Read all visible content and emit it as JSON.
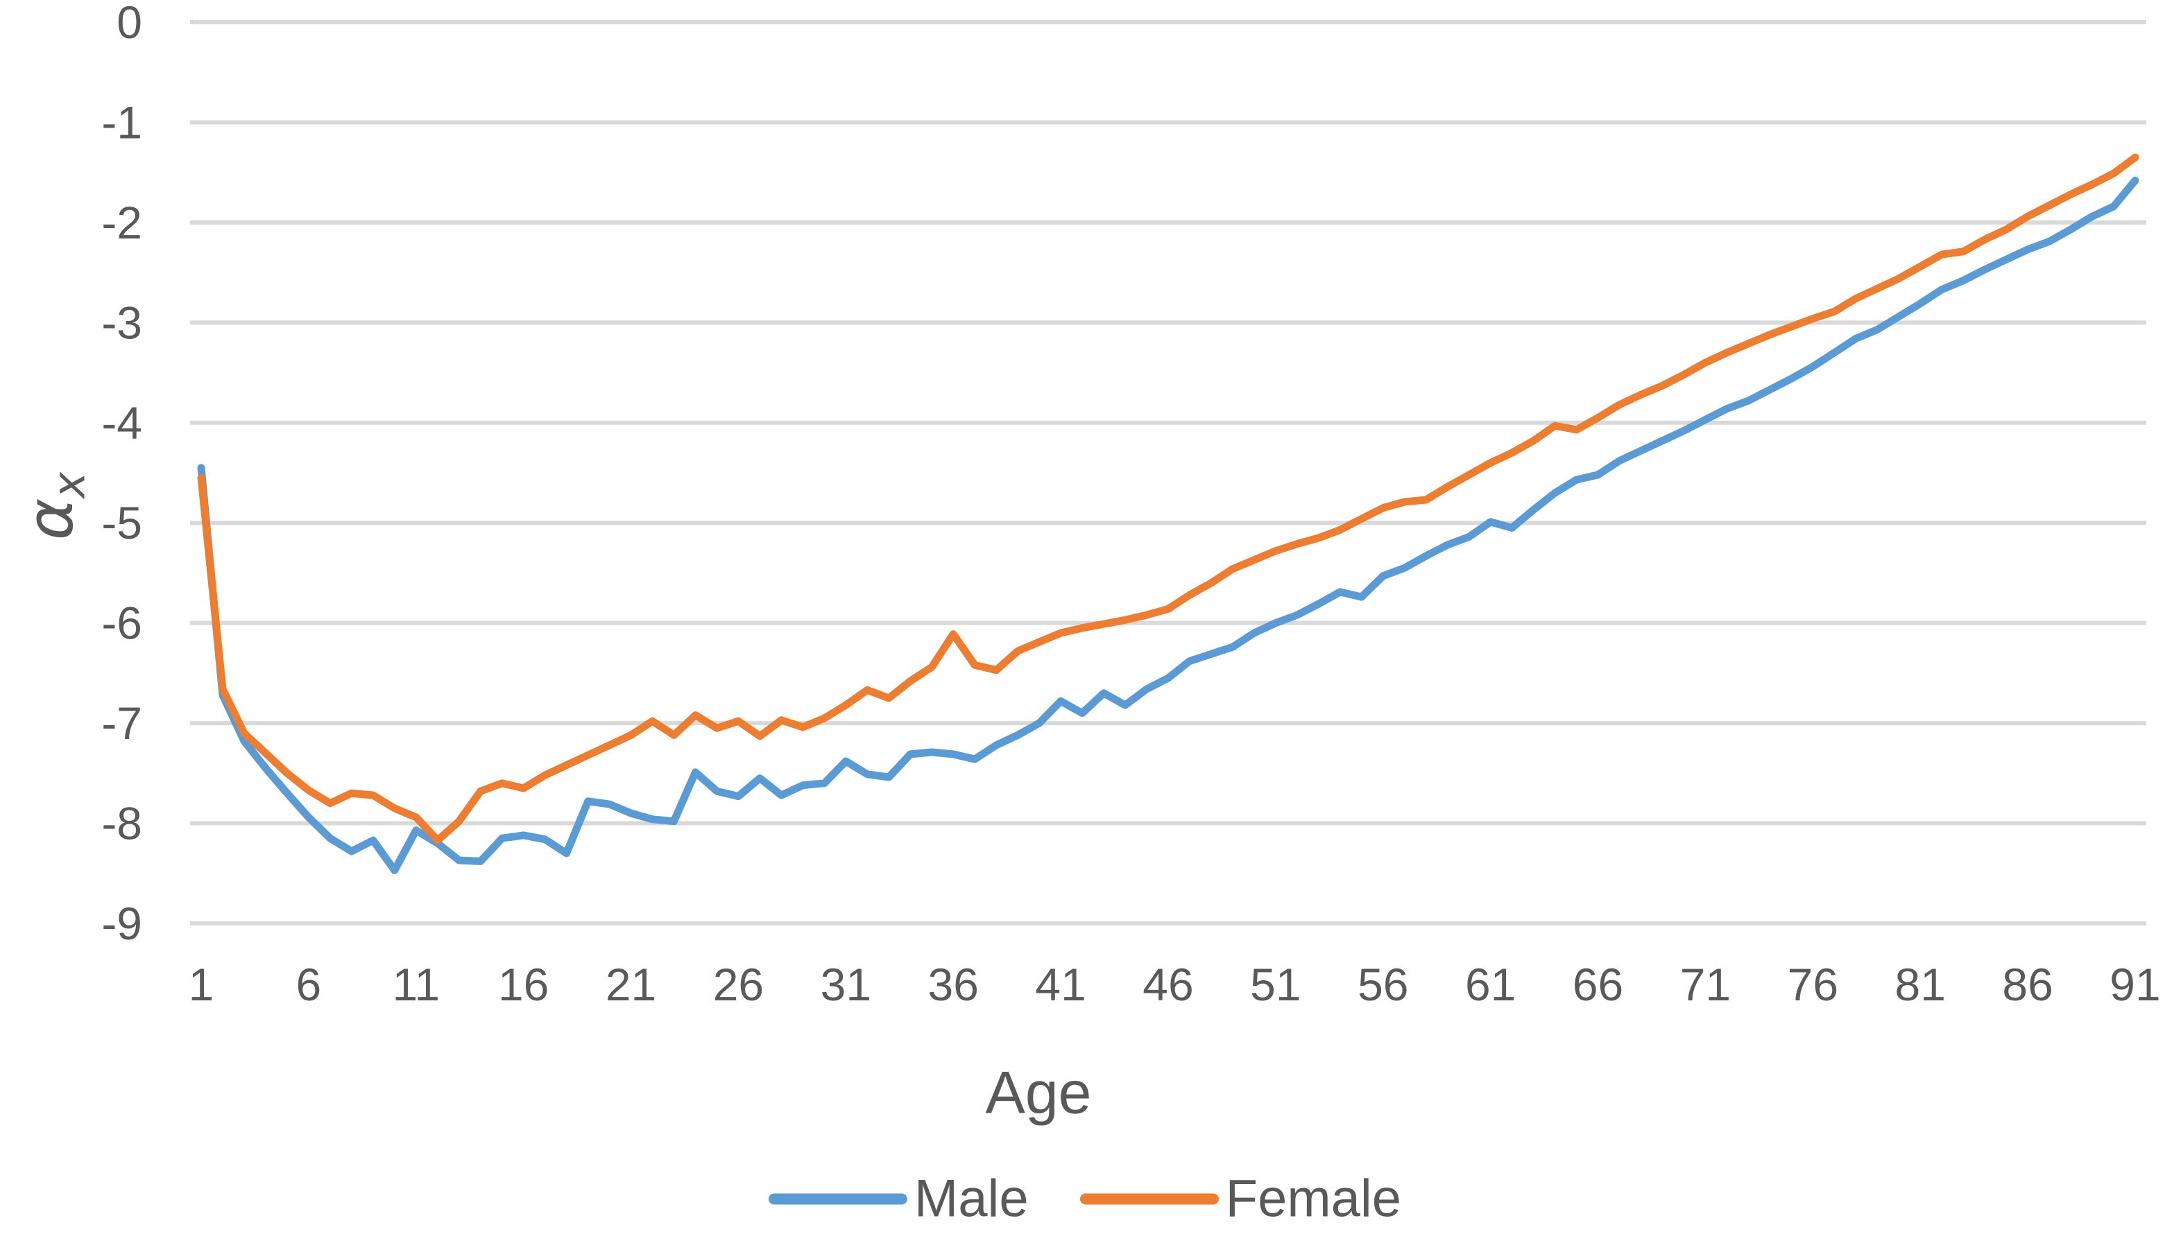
{
  "chart_data": {
    "type": "line",
    "title": "",
    "xlabel": "Age",
    "ylabel_base": "α",
    "ylabel_subscript": "x",
    "grid": true,
    "legend_position": "bottom",
    "x_axis": {
      "label": "Age",
      "min": 1,
      "max": 91,
      "tick_labels": [
        "1",
        "6",
        "11",
        "16",
        "21",
        "26",
        "31",
        "36",
        "41",
        "46",
        "51",
        "56",
        "61",
        "66",
        "71",
        "76",
        "81",
        "86",
        "91"
      ]
    },
    "y_axis": {
      "label": "αx",
      "min": -9,
      "max": 0,
      "tick_labels": [
        "0",
        "-1",
        "-2",
        "-3",
        "-4",
        "-5",
        "-6",
        "-7",
        "-8",
        "-9"
      ]
    },
    "x": [
      1,
      2,
      3,
      4,
      5,
      6,
      7,
      8,
      9,
      10,
      11,
      12,
      13,
      14,
      15,
      16,
      17,
      18,
      19,
      20,
      21,
      22,
      23,
      24,
      25,
      26,
      27,
      28,
      29,
      30,
      31,
      32,
      33,
      34,
      35,
      36,
      37,
      38,
      39,
      40,
      41,
      42,
      43,
      44,
      45,
      46,
      47,
      48,
      49,
      50,
      51,
      52,
      53,
      54,
      55,
      56,
      57,
      58,
      59,
      60,
      61,
      62,
      63,
      64,
      65,
      66,
      67,
      68,
      69,
      70,
      71,
      72,
      73,
      74,
      75,
      76,
      77,
      78,
      79,
      80,
      81,
      82,
      83,
      84,
      85,
      86,
      87,
      88,
      89,
      90,
      91
    ],
    "series": [
      {
        "name": "Male",
        "color": "#5B9BD5",
        "values": [
          -4.45,
          -6.72,
          -7.18,
          -7.45,
          -7.7,
          -7.94,
          -8.15,
          -8.28,
          -8.17,
          -8.47,
          -8.07,
          -8.2,
          -8.37,
          -8.38,
          -8.15,
          -8.12,
          -8.16,
          -8.3,
          -7.78,
          -7.81,
          -7.9,
          -7.96,
          -7.98,
          -7.49,
          -7.68,
          -7.73,
          -7.55,
          -7.72,
          -7.62,
          -7.6,
          -7.38,
          -7.51,
          -7.54,
          -7.31,
          -7.29,
          -7.31,
          -7.36,
          -7.22,
          -7.12,
          -7.0,
          -6.78,
          -6.9,
          -6.7,
          -6.82,
          -6.66,
          -6.55,
          -6.38,
          -6.31,
          -6.24,
          -6.1,
          -6.0,
          -5.92,
          -5.81,
          -5.69,
          -5.74,
          -5.53,
          -5.45,
          -5.33,
          -5.22,
          -5.14,
          -4.99,
          -5.05,
          -4.87,
          -4.7,
          -4.57,
          -4.52,
          -4.38,
          -4.28,
          -4.18,
          -4.08,
          -3.97,
          -3.86,
          -3.78,
          -3.67,
          -3.56,
          -3.44,
          -3.3,
          -3.16,
          -3.07,
          -2.94,
          -2.81,
          -2.67,
          -2.58,
          -2.47,
          -2.37,
          -2.27,
          -2.19,
          -2.07,
          -1.94,
          -1.84,
          -1.58
        ]
      },
      {
        "name": "Female",
        "color": "#ED7D31",
        "values": [
          -4.55,
          -6.66,
          -7.1,
          -7.3,
          -7.5,
          -7.67,
          -7.8,
          -7.7,
          -7.72,
          -7.85,
          -7.94,
          -8.17,
          -7.98,
          -7.68,
          -7.6,
          -7.65,
          -7.52,
          -7.42,
          -7.32,
          -7.22,
          -7.12,
          -6.98,
          -7.12,
          -6.92,
          -7.05,
          -6.98,
          -7.13,
          -6.97,
          -7.04,
          -6.95,
          -6.82,
          -6.67,
          -6.75,
          -6.58,
          -6.44,
          -6.11,
          -6.42,
          -6.47,
          -6.28,
          -6.19,
          -6.1,
          -6.05,
          -6.01,
          -5.97,
          -5.92,
          -5.86,
          -5.72,
          -5.6,
          -5.46,
          -5.37,
          -5.28,
          -5.21,
          -5.15,
          -5.07,
          -4.96,
          -4.85,
          -4.79,
          -4.77,
          -4.64,
          -4.52,
          -4.4,
          -4.3,
          -4.18,
          -4.03,
          -4.07,
          -3.95,
          -3.82,
          -3.72,
          -3.63,
          -3.52,
          -3.4,
          -3.3,
          -3.21,
          -3.12,
          -3.04,
          -2.96,
          -2.89,
          -2.76,
          -2.66,
          -2.56,
          -2.44,
          -2.32,
          -2.29,
          -2.17,
          -2.07,
          -1.94,
          -1.83,
          -1.72,
          -1.62,
          -1.51,
          -1.35
        ]
      }
    ]
  },
  "style": {
    "background": "#FFFFFF",
    "grid_color": "#D9D9D9",
    "text_color": "#595959",
    "male_color": "#5B9BD5",
    "female_color": "#ED7D31"
  }
}
